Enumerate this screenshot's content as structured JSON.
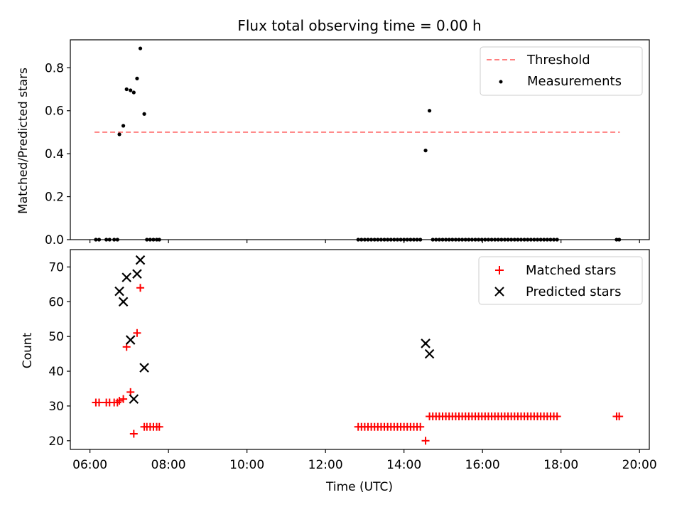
{
  "chart_data": [
    {
      "type": "scatter",
      "title": "Flux total observing time = 0.00 h",
      "ylabel": "Matched/Predicted stars",
      "xlabel": "",
      "xlim": [
        "05:30",
        "20:15"
      ],
      "ylim": [
        0,
        0.93
      ],
      "yticks": [
        "0.0",
        "0.2",
        "0.4",
        "0.6",
        "0.8"
      ],
      "ytick_values": [
        0,
        0.2,
        0.4,
        0.6,
        0.8
      ],
      "xticks": [
        "06:00",
        "08:00",
        "10:00",
        "12:00",
        "14:00",
        "16:00",
        "18:00",
        "20:00"
      ],
      "xtick_labels_shown": false,
      "legend_placement": "top-right",
      "legend": {
        "threshold": "Threshold",
        "measurements": "Measurements"
      },
      "threshold": {
        "name": "Threshold",
        "value": 0.5,
        "x_range": [
          "06:07",
          "19:30"
        ],
        "color": "#ff7f7f",
        "style": "dashed"
      },
      "series": [
        {
          "name": "Measurements",
          "marker": "dot",
          "color": "#000000",
          "points": [
            [
              "06:09",
              0
            ],
            [
              "06:14",
              0
            ],
            [
              "06:25",
              0
            ],
            [
              "06:30",
              0
            ],
            [
              "06:37",
              0
            ],
            [
              "06:42",
              0
            ],
            [
              "06:45",
              0.49
            ],
            [
              "06:51",
              0.53
            ],
            [
              "06:56",
              0.7
            ],
            [
              "07:02",
              0.695
            ],
            [
              "07:07",
              0.685
            ],
            [
              "07:12",
              0.75
            ],
            [
              "07:17",
              0.89
            ],
            [
              "07:23",
              0.585
            ],
            [
              "07:27",
              0
            ],
            [
              "07:32",
              0
            ],
            [
              "07:37",
              0
            ],
            [
              "07:42",
              0
            ],
            [
              "07:46",
              0
            ],
            [
              "12:50",
              0
            ],
            [
              "12:55",
              0
            ],
            [
              "13:00",
              0
            ],
            [
              "13:05",
              0
            ],
            [
              "13:10",
              0
            ],
            [
              "13:15",
              0
            ],
            [
              "13:20",
              0
            ],
            [
              "13:25",
              0
            ],
            [
              "13:30",
              0
            ],
            [
              "13:35",
              0
            ],
            [
              "13:40",
              0
            ],
            [
              "13:45",
              0
            ],
            [
              "13:50",
              0
            ],
            [
              "13:55",
              0
            ],
            [
              "14:00",
              0
            ],
            [
              "14:05",
              0
            ],
            [
              "14:10",
              0
            ],
            [
              "14:15",
              0
            ],
            [
              "14:20",
              0
            ],
            [
              "14:25",
              0
            ],
            [
              "14:33",
              0.415
            ],
            [
              "14:39",
              0.6
            ],
            [
              "14:44",
              0
            ],
            [
              "14:49",
              0
            ],
            [
              "14:54",
              0
            ],
            [
              "14:59",
              0
            ],
            [
              "15:04",
              0
            ],
            [
              "15:09",
              0
            ],
            [
              "15:14",
              0
            ],
            [
              "15:19",
              0
            ],
            [
              "15:24",
              0
            ],
            [
              "15:29",
              0
            ],
            [
              "15:34",
              0
            ],
            [
              "15:39",
              0
            ],
            [
              "15:44",
              0
            ],
            [
              "15:49",
              0
            ],
            [
              "15:54",
              0
            ],
            [
              "15:59",
              0
            ],
            [
              "16:04",
              0
            ],
            [
              "16:09",
              0
            ],
            [
              "16:14",
              0
            ],
            [
              "16:19",
              0
            ],
            [
              "16:24",
              0
            ],
            [
              "16:29",
              0
            ],
            [
              "16:34",
              0
            ],
            [
              "16:39",
              0
            ],
            [
              "16:44",
              0
            ],
            [
              "16:49",
              0
            ],
            [
              "16:54",
              0
            ],
            [
              "16:59",
              0
            ],
            [
              "17:04",
              0
            ],
            [
              "17:09",
              0
            ],
            [
              "17:14",
              0
            ],
            [
              "17:19",
              0
            ],
            [
              "17:24",
              0
            ],
            [
              "17:29",
              0
            ],
            [
              "17:34",
              0
            ],
            [
              "17:39",
              0
            ],
            [
              "17:44",
              0
            ],
            [
              "17:49",
              0
            ],
            [
              "17:54",
              0
            ],
            [
              "19:25",
              0
            ],
            [
              "19:29",
              0
            ]
          ]
        }
      ]
    },
    {
      "type": "scatter",
      "title": "",
      "ylabel": "Count",
      "xlabel": "Time (UTC)",
      "xlim": [
        "05:30",
        "20:15"
      ],
      "ylim": [
        17.5,
        75
      ],
      "yticks": [
        "20",
        "30",
        "40",
        "50",
        "60",
        "70"
      ],
      "ytick_values": [
        20,
        30,
        40,
        50,
        60,
        70
      ],
      "xticks": [
        "06:00",
        "08:00",
        "10:00",
        "12:00",
        "14:00",
        "16:00",
        "18:00",
        "20:00"
      ],
      "xtick_labels_shown": true,
      "legend_placement": "top-right",
      "legend": {
        "matched": "Matched stars",
        "predicted": "Predicted stars"
      },
      "series": [
        {
          "name": "Matched stars",
          "marker": "plus",
          "color": "#ff0000",
          "points": [
            [
              "06:09",
              31
            ],
            [
              "06:14",
              31
            ],
            [
              "06:25",
              31
            ],
            [
              "06:30",
              31
            ],
            [
              "06:37",
              31
            ],
            [
              "06:42",
              31
            ],
            [
              "06:45",
              31.5
            ],
            [
              "06:51",
              32
            ],
            [
              "06:56",
              47
            ],
            [
              "07:02",
              34
            ],
            [
              "07:07",
              22
            ],
            [
              "07:12",
              51
            ],
            [
              "07:17",
              64
            ],
            [
              "07:23",
              24
            ],
            [
              "07:27",
              24
            ],
            [
              "07:32",
              24
            ],
            [
              "07:37",
              24
            ],
            [
              "07:42",
              24
            ],
            [
              "07:46",
              24
            ],
            [
              "12:50",
              24
            ],
            [
              "12:55",
              24
            ],
            [
              "13:00",
              24
            ],
            [
              "13:05",
              24
            ],
            [
              "13:10",
              24
            ],
            [
              "13:15",
              24
            ],
            [
              "13:20",
              24
            ],
            [
              "13:25",
              24
            ],
            [
              "13:30",
              24
            ],
            [
              "13:35",
              24
            ],
            [
              "13:40",
              24
            ],
            [
              "13:45",
              24
            ],
            [
              "13:50",
              24
            ],
            [
              "13:55",
              24
            ],
            [
              "14:00",
              24
            ],
            [
              "14:05",
              24
            ],
            [
              "14:10",
              24
            ],
            [
              "14:15",
              24
            ],
            [
              "14:20",
              24
            ],
            [
              "14:25",
              24
            ],
            [
              "14:33",
              20
            ],
            [
              "14:39",
              27
            ],
            [
              "14:44",
              27
            ],
            [
              "14:49",
              27
            ],
            [
              "14:54",
              27
            ],
            [
              "14:59",
              27
            ],
            [
              "15:04",
              27
            ],
            [
              "15:09",
              27
            ],
            [
              "15:14",
              27
            ],
            [
              "15:19",
              27
            ],
            [
              "15:24",
              27
            ],
            [
              "15:29",
              27
            ],
            [
              "15:34",
              27
            ],
            [
              "15:39",
              27
            ],
            [
              "15:44",
              27
            ],
            [
              "15:49",
              27
            ],
            [
              "15:54",
              27
            ],
            [
              "15:59",
              27
            ],
            [
              "16:04",
              27
            ],
            [
              "16:09",
              27
            ],
            [
              "16:14",
              27
            ],
            [
              "16:19",
              27
            ],
            [
              "16:24",
              27
            ],
            [
              "16:29",
              27
            ],
            [
              "16:34",
              27
            ],
            [
              "16:39",
              27
            ],
            [
              "16:44",
              27
            ],
            [
              "16:49",
              27
            ],
            [
              "16:54",
              27
            ],
            [
              "16:59",
              27
            ],
            [
              "17:04",
              27
            ],
            [
              "17:09",
              27
            ],
            [
              "17:14",
              27
            ],
            [
              "17:19",
              27
            ],
            [
              "17:24",
              27
            ],
            [
              "17:29",
              27
            ],
            [
              "17:34",
              27
            ],
            [
              "17:39",
              27
            ],
            [
              "17:44",
              27
            ],
            [
              "17:49",
              27
            ],
            [
              "17:54",
              27
            ],
            [
              "19:25",
              27
            ],
            [
              "19:29",
              27
            ]
          ]
        },
        {
          "name": "Predicted stars",
          "marker": "x",
          "color": "#000000",
          "points": [
            [
              "06:45",
              63
            ],
            [
              "06:51",
              60
            ],
            [
              "06:56",
              67
            ],
            [
              "07:02",
              49
            ],
            [
              "07:07",
              32
            ],
            [
              "07:12",
              68
            ],
            [
              "07:17",
              72
            ],
            [
              "07:23",
              41
            ],
            [
              "14:33",
              48
            ],
            [
              "14:39",
              45
            ]
          ]
        }
      ]
    }
  ]
}
